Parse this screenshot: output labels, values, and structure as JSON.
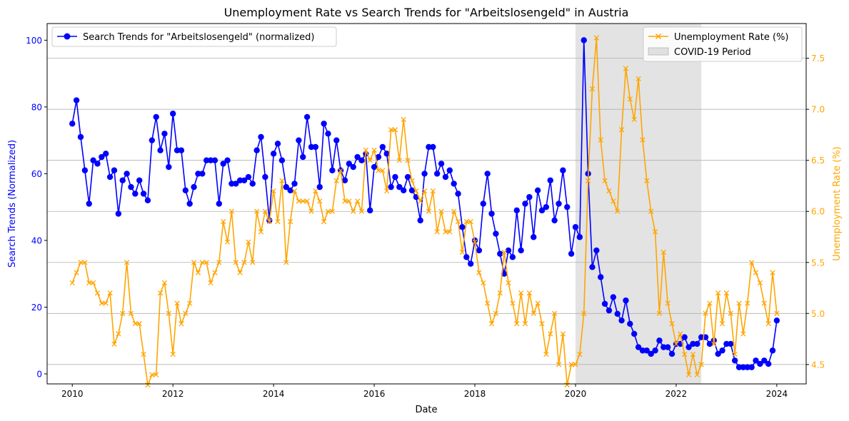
{
  "chart_data": {
    "type": "line",
    "title": "Unemployment Rate vs Search Trends for \"Arbeitslosengeld\" in Austria",
    "xlabel": "Date",
    "ylabel_left": "Search Trends (Normalized)",
    "ylabel_right": "Unemployment Rate (%)",
    "x_ticks": [
      "2010",
      "2012",
      "2014",
      "2016",
      "2018",
      "2020",
      "2022",
      "2024"
    ],
    "y_left_ticks": [
      0,
      20,
      40,
      60,
      80,
      100
    ],
    "y_right_ticks": [
      "4.5",
      "5.0",
      "5.5",
      "6.0",
      "6.5",
      "7.0",
      "7.5"
    ],
    "x_range": [
      "2009-07",
      "2024-08"
    ],
    "y_left_range": [
      -3,
      105
    ],
    "y_right_range": [
      4.31,
      7.84
    ],
    "grid": "horizontal lines on right axis",
    "legend_left": {
      "placement": "top-left",
      "label": "Search Trends for \"Arbeitslosengeld\" (normalized)"
    },
    "legend_right": {
      "placement": "top-right",
      "labels": [
        "Unemployment Rate (%)",
        "COVID-19 Period"
      ]
    },
    "shaded_region": {
      "label": "COVID-19 Period",
      "start": "2020-01",
      "end": "2022-07"
    },
    "start_month": "2010-01",
    "series": [
      {
        "name": "Search Trends for \"Arbeitslosengeld\" (normalized)",
        "axis": "left",
        "color": "#0000ff",
        "marker": "circle",
        "values": [
          75,
          82,
          71,
          61,
          51,
          64,
          63,
          65,
          66,
          59,
          61,
          48,
          58,
          60,
          56,
          54,
          58,
          54,
          52,
          70,
          77,
          67,
          72,
          62,
          78,
          67,
          67,
          55,
          51,
          56,
          60,
          60,
          64,
          64,
          64,
          51,
          63,
          64,
          57,
          57,
          58,
          58,
          59,
          57,
          67,
          71,
          59,
          46,
          66,
          69,
          64,
          56,
          55,
          57,
          70,
          65,
          77,
          68,
          68,
          56,
          75,
          72,
          61,
          70,
          61,
          58,
          63,
          62,
          65,
          64,
          66,
          49,
          62,
          65,
          68,
          66,
          56,
          59,
          56,
          55,
          59,
          55,
          53,
          46,
          60,
          68,
          68,
          60,
          63,
          59,
          61,
          57,
          54,
          44,
          35,
          33,
          40,
          37,
          51,
          60,
          48,
          42,
          36,
          30,
          37,
          35,
          49,
          37,
          51,
          53,
          41,
          55,
          49,
          50,
          58,
          46,
          51,
          61,
          50,
          36,
          44,
          41,
          100,
          60,
          32,
          37,
          29,
          21,
          19,
          23,
          18,
          16,
          22,
          15,
          12,
          8,
          7,
          7,
          6,
          7,
          10,
          8,
          8,
          6,
          9,
          9,
          11,
          8,
          9,
          9,
          11,
          11,
          9,
          10,
          6,
          7,
          9,
          9,
          4,
          2,
          2,
          2,
          2,
          4,
          3,
          4,
          3,
          7,
          16
        ]
      },
      {
        "name": "Unemployment Rate (%)",
        "axis": "right",
        "color": "#ffa500",
        "marker": "x",
        "values": [
          5.3,
          5.4,
          5.5,
          5.5,
          5.3,
          5.3,
          5.2,
          5.1,
          5.1,
          5.2,
          4.7,
          4.8,
          5.0,
          5.5,
          5.0,
          4.9,
          4.9,
          4.6,
          4.3,
          4.4,
          4.4,
          5.2,
          5.3,
          5.0,
          4.6,
          5.1,
          4.9,
          5.0,
          5.1,
          5.5,
          5.4,
          5.5,
          5.5,
          5.3,
          5.4,
          5.5,
          5.9,
          5.7,
          6.0,
          5.5,
          5.4,
          5.5,
          5.7,
          5.5,
          6.0,
          5.8,
          6.0,
          5.9,
          6.2,
          5.9,
          6.3,
          5.5,
          5.9,
          6.2,
          6.1,
          6.1,
          6.1,
          6.0,
          6.2,
          6.1,
          5.9,
          6.0,
          6.0,
          6.3,
          6.4,
          6.1,
          6.1,
          6.0,
          6.1,
          6.0,
          6.6,
          6.5,
          6.6,
          6.4,
          6.4,
          6.2,
          6.8,
          6.8,
          6.5,
          6.9,
          6.5,
          6.3,
          6.2,
          6.1,
          6.2,
          6.0,
          6.2,
          5.8,
          6.0,
          5.8,
          5.8,
          6.0,
          5.9,
          5.6,
          5.9,
          5.9,
          5.7,
          5.4,
          5.3,
          5.1,
          4.9,
          5.0,
          5.2,
          5.6,
          5.3,
          5.1,
          4.9,
          5.2,
          4.9,
          5.2,
          5.0,
          5.1,
          4.9,
          4.6,
          4.8,
          5.0,
          4.5,
          4.8,
          4.3,
          4.5,
          4.5,
          4.6,
          5.0,
          6.3,
          7.2,
          7.7,
          6.7,
          6.3,
          6.2,
          6.1,
          6.0,
          6.8,
          7.4,
          7.1,
          6.9,
          7.3,
          6.7,
          6.3,
          6.0,
          5.8,
          5.0,
          5.6,
          5.1,
          4.9,
          4.7,
          4.8,
          4.6,
          4.4,
          4.6,
          4.4,
          4.5,
          5.0,
          5.1,
          4.7,
          5.2,
          4.9,
          5.2,
          5.0,
          4.6,
          5.1,
          4.8,
          5.1,
          5.5,
          5.4,
          5.3,
          5.1,
          4.9,
          5.4,
          5.0
        ]
      }
    ]
  }
}
